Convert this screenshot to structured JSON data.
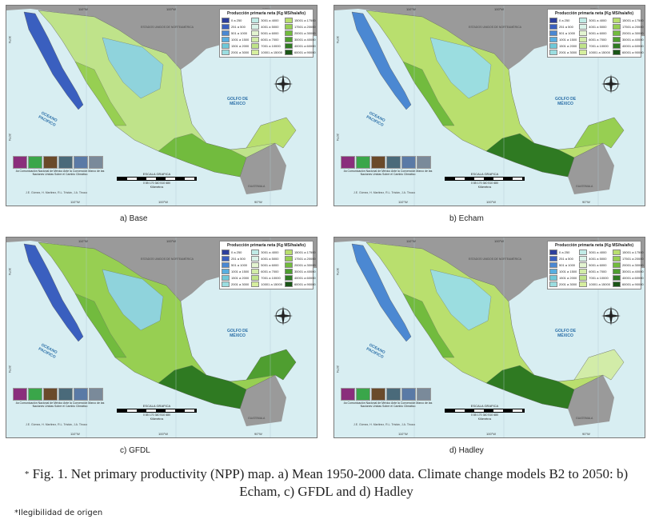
{
  "legend": {
    "title": "Producción primaria neta (Kg MS/ha/año)",
    "items": [
      {
        "label": "0 a 250",
        "color": "#2d3f9c"
      },
      {
        "label": "251 a 500",
        "color": "#3a5fbf"
      },
      {
        "label": "501 a 1000",
        "color": "#4b88d2"
      },
      {
        "label": "1001 a 1500",
        "color": "#58aee0"
      },
      {
        "label": "1501 a 2000",
        "color": "#6fc8d8"
      },
      {
        "label": "2001 a 3000",
        "color": "#9bdde0"
      },
      {
        "label": "3001 a 4000",
        "color": "#c0ebe6"
      },
      {
        "label": "4001 a 5000",
        "color": "#d9f2e8"
      },
      {
        "label": "5001 a 6000",
        "color": "#e3f4d0"
      },
      {
        "label": "6001 a 7000",
        "color": "#d2eca8"
      },
      {
        "label": "7001 a 10000",
        "color": "#bfe38a"
      },
      {
        "label": "10001 a 15000",
        "color": "#d6ee9e"
      },
      {
        "label": "15001 a 17500",
        "color": "#b9df6e"
      },
      {
        "label": "17501 a 20000",
        "color": "#97cf52"
      },
      {
        "label": "20001 a 30000",
        "color": "#72bb3e"
      },
      {
        "label": "30001 a 40000",
        "color": "#4f9e30"
      },
      {
        "label": "40001 a 60000",
        "color": "#2f7a22"
      },
      {
        "label": "60001 a 90000",
        "color": "#1a5516"
      }
    ]
  },
  "map": {
    "lon_labels": [
      "110°W",
      "100°W",
      "90°W"
    ],
    "lat_labels": [
      "30°N",
      "20°N"
    ],
    "pacific_label": "OCEANO PACIFICO",
    "gulf_label": "GOLFO DE MÉXICO",
    "usa_label": "ESTADOS UNIDOS DE NORTEAMÉRICA",
    "guatemala_label": "GUATEMALA",
    "institution_text": "4a Comunicación Nacional de México Ante la Convención Marco de las Naciones Unidas Sobre el Cambio Climático",
    "scale_title": "ESCALA GRAFICA",
    "scale_ticks": "0 85 170 340 510 680",
    "scale_units": "Kilómetros",
    "credits": "J.E. Gómez, H. Martinez, R.L. Tristán, J.A. Tinoco",
    "logo_colors": [
      "#8a2e7c",
      "#3aa64a",
      "#6a4a2a",
      "#4a6a7a",
      "#5a7aa6",
      "#7a8a9a"
    ]
  },
  "panels": [
    {
      "caption": "a) Base"
    },
    {
      "caption": "b) Echam"
    },
    {
      "caption": "c) GFDL"
    },
    {
      "caption": "d) Hadley"
    }
  ],
  "figure_caption": "Fig. 1. Net primary productivity (NPP) map. a) Mean 1950-2000 data. Climate change models B2 to 2050: b) Echam, c) GFDL and d) Hadley",
  "figure_caption_marker": "*",
  "footnote": "*Ilegibilidad de origen"
}
